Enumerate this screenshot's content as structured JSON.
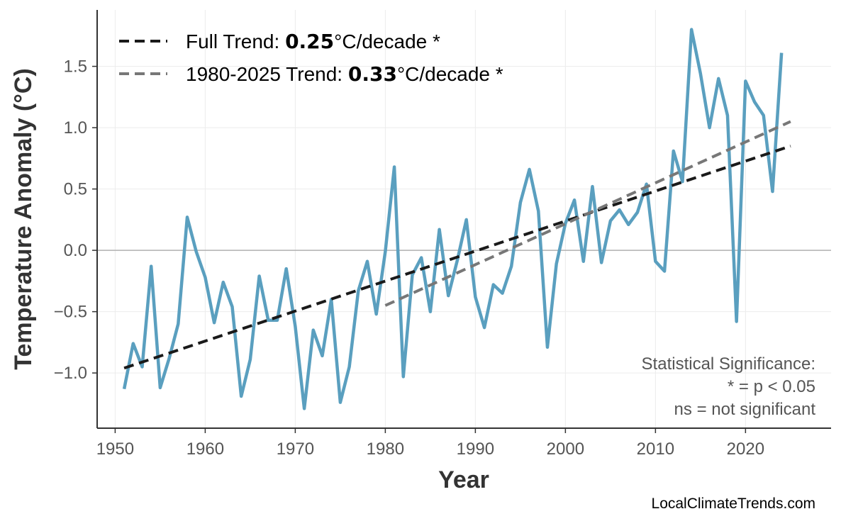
{
  "chart_data": {
    "type": "line",
    "xlabel": "Year",
    "ylabel": "Temperature Anomaly (°C)",
    "xlim": [
      1948,
      2029.5
    ],
    "ylim": [
      -1.45,
      1.96
    ],
    "grid": true,
    "legend_placement": "top-left",
    "xticks": [
      1950,
      1960,
      1970,
      1980,
      1990,
      2000,
      2010,
      2020
    ],
    "yticks": [
      -1.0,
      -0.5,
      0.0,
      0.5,
      1.0,
      1.5
    ],
    "ytick_labels": [
      "−1.0",
      "−0.5",
      "0.0",
      "0.5",
      "1.0",
      "1.5"
    ],
    "series": [
      {
        "color": "#5a9fbf",
        "x": [
          1951,
          1952,
          1953,
          1954,
          1955,
          1956,
          1957,
          1958,
          1959,
          1960,
          1961,
          1962,
          1963,
          1964,
          1965,
          1966,
          1967,
          1968,
          1969,
          1970,
          1971,
          1972,
          1973,
          1974,
          1975,
          1976,
          1977,
          1978,
          1979,
          1980,
          1981,
          1982,
          1983,
          1984,
          1985,
          1986,
          1987,
          1988,
          1989,
          1990,
          1991,
          1992,
          1993,
          1994,
          1995,
          1996,
          1997,
          1998,
          1999,
          2000,
          2001,
          2002,
          2003,
          2004,
          2005,
          2006,
          2007,
          2008,
          2009,
          2010,
          2011,
          2012,
          2013,
          2014,
          2015,
          2016,
          2017,
          2018,
          2019,
          2020,
          2021,
          2022,
          2023,
          2024
        ],
        "y": [
          -1.13,
          -0.76,
          -0.95,
          -0.13,
          -1.12,
          -0.88,
          -0.6,
          0.27,
          -0.01,
          -0.22,
          -0.59,
          -0.26,
          -0.46,
          -1.19,
          -0.89,
          -0.21,
          -0.57,
          -0.57,
          -0.15,
          -0.62,
          -1.29,
          -0.65,
          -0.86,
          -0.4,
          -1.24,
          -0.95,
          -0.33,
          -0.09,
          -0.52,
          -0.01,
          0.68,
          -1.03,
          -0.2,
          -0.06,
          -0.5,
          0.17,
          -0.37,
          -0.08,
          0.25,
          -0.38,
          -0.63,
          -0.28,
          -0.35,
          -0.13,
          0.39,
          0.66,
          0.32,
          -0.79,
          -0.11,
          0.22,
          0.41,
          -0.09,
          0.52,
          -0.1,
          0.24,
          0.33,
          0.21,
          0.31,
          0.54,
          -0.09,
          -0.17,
          0.81,
          0.56,
          1.8,
          1.44,
          1.0,
          1.4,
          1.1,
          -0.58,
          1.38,
          1.21,
          1.1,
          0.48,
          1.61
        ]
      }
    ],
    "trends": [
      {
        "label_prefix": "Full Trend: ",
        "value": "0.25",
        "label_suffix": "°C/decade *",
        "color": "#1a1a1a",
        "x": [
          1951,
          2025
        ],
        "y": [
          -0.96,
          0.85
        ]
      },
      {
        "label_prefix": "1980-2025 Trend: ",
        "value": "0.33",
        "label_suffix": "°C/decade *",
        "color": "#777777",
        "x": [
          1980,
          2025
        ],
        "y": [
          -0.45,
          1.05
        ]
      }
    ],
    "annotation": [
      "Statistical Significance:",
      "* = p < 0.05",
      "ns = not significant"
    ],
    "credit": "LocalClimateTrends.com"
  }
}
